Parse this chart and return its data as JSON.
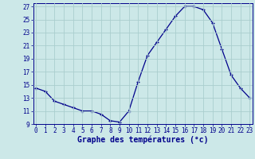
{
  "hours": [
    0,
    1,
    2,
    3,
    4,
    5,
    6,
    7,
    8,
    9,
    10,
    11,
    12,
    13,
    14,
    15,
    16,
    17,
    18,
    19,
    20,
    21,
    22,
    23
  ],
  "temperatures": [
    14.5,
    14.0,
    12.5,
    12.0,
    11.5,
    11.0,
    11.0,
    10.5,
    9.5,
    9.3,
    11.0,
    15.5,
    19.5,
    21.5,
    23.5,
    25.5,
    27.0,
    27.0,
    26.5,
    24.5,
    20.5,
    16.5,
    14.5,
    13.0
  ],
  "bg_color": "#cce8e8",
  "grid_color": "#aacece",
  "line_color": "#00008b",
  "marker_color": "#00008b",
  "xlabel": "Graphe des températures (°c)",
  "tick_color": "#00008b",
  "ylim_min": 9,
  "ylim_max": 27,
  "xlim_min": 0,
  "xlim_max": 23,
  "yticks": [
    9,
    11,
    13,
    15,
    17,
    19,
    21,
    23,
    25,
    27
  ],
  "xticks": [
    0,
    1,
    2,
    3,
    4,
    5,
    6,
    7,
    8,
    9,
    10,
    11,
    12,
    13,
    14,
    15,
    16,
    17,
    18,
    19,
    20,
    21,
    22,
    23
  ],
  "tick_fontsize": 5.5,
  "xlabel_fontsize": 7.0
}
